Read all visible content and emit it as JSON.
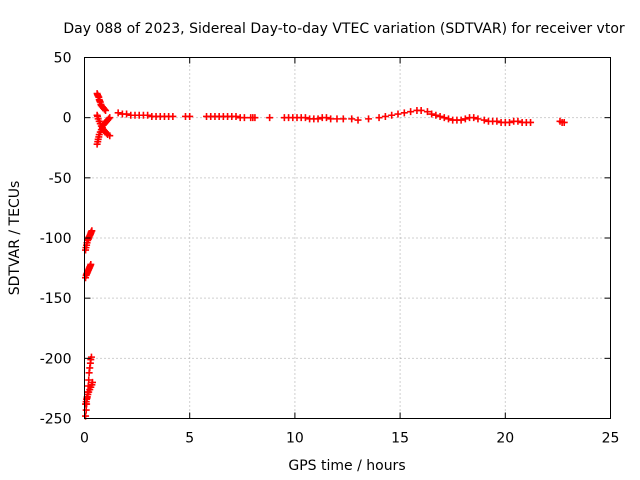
{
  "chart_data": {
    "type": "scatter",
    "title": "Day 088 of 2023, Sidereal Day-to-day VTEC variation (SDTVAR) for receiver vtor",
    "xlabel": "GPS time / hours",
    "ylabel": "SDTVAR / TECUs",
    "xlim": [
      0,
      25
    ],
    "ylim": [
      -250,
      50
    ],
    "xticks": [
      0,
      5,
      10,
      15,
      20,
      25
    ],
    "yticks": [
      -250,
      -200,
      -150,
      -100,
      -50,
      0,
      50
    ],
    "grid": true,
    "marker": "plus",
    "color": "#ff0000",
    "series": [
      {
        "name": "SDTVAR",
        "x": [
          0.05,
          0.08,
          0.1,
          0.12,
          0.15,
          0.18,
          0.2,
          0.22,
          0.25,
          0.28,
          0.3,
          0.33,
          0.05,
          0.08,
          0.1,
          0.13,
          0.15,
          0.18,
          0.2,
          0.23,
          0.25,
          0.28,
          0.3,
          0.05,
          0.07,
          0.1,
          0.12,
          0.15,
          0.18,
          0.2,
          0.22,
          0.25,
          0.28,
          0.3,
          0.32,
          0.35,
          0.05,
          0.08,
          0.1,
          0.13,
          0.16,
          0.2,
          0.25,
          0.3,
          0.35,
          0.38,
          0.6,
          0.62,
          0.65,
          0.68,
          0.7,
          0.72,
          0.75,
          0.78,
          0.8,
          0.85,
          0.9,
          0.95,
          1.0,
          0.6,
          0.63,
          0.65,
          0.68,
          0.7,
          0.75,
          0.8,
          0.85,
          0.9,
          0.95,
          1.0,
          1.05,
          1.1,
          1.15,
          1.2,
          0.6,
          0.62,
          0.65,
          0.7,
          0.75,
          0.8,
          0.85,
          0.9,
          0.95,
          1.0,
          1.05,
          1.1,
          1.2,
          1.6,
          1.8,
          2.0,
          2.2,
          2.4,
          2.6,
          2.8,
          3.0,
          3.2,
          3.4,
          3.6,
          3.8,
          4.0,
          4.2,
          4.8,
          5.0,
          5.8,
          6.0,
          6.2,
          6.4,
          6.6,
          6.8,
          7.0,
          7.2,
          7.4,
          7.6,
          7.9,
          8.0,
          8.1,
          8.8,
          9.5,
          9.7,
          9.9,
          10.1,
          10.3,
          10.5,
          10.7,
          10.9,
          11.1,
          11.3,
          11.5,
          11.7,
          12.0,
          12.3,
          12.7,
          13.0,
          13.5,
          14.0,
          14.3,
          14.6,
          14.9,
          15.2,
          15.5,
          15.8,
          16.0,
          16.3,
          16.5,
          16.7,
          16.9,
          17.1,
          17.3,
          17.5,
          17.7,
          17.9,
          18.1,
          18.3,
          18.5,
          18.7,
          19.0,
          19.2,
          19.4,
          19.6,
          19.8,
          20.0,
          20.2,
          20.4,
          20.6,
          20.8,
          21.0,
          21.2,
          22.6,
          22.7,
          22.8
        ],
        "y": [
          -248,
          -243,
          -238,
          -233,
          -228,
          -223,
          -218,
          -212,
          -208,
          -204,
          -201,
          -199,
          -133,
          -131,
          -130,
          -129,
          -128,
          -127,
          -126,
          -125,
          -124,
          -123,
          -122,
          -110,
          -108,
          -106,
          -104,
          -102,
          -101,
          -100,
          -99,
          -98,
          -97,
          -96,
          -95,
          -94,
          -238,
          -236,
          -234,
          -232,
          -230,
          -228,
          -226,
          -224,
          -222,
          -220,
          20,
          19,
          18,
          17,
          15,
          14,
          13,
          11,
          10,
          9,
          8,
          7,
          6,
          -22,
          -20,
          -18,
          -16,
          -14,
          -12,
          -10,
          -8,
          -6,
          -5,
          -4,
          -3,
          -2,
          -1,
          0,
          2,
          1,
          -1,
          -3,
          -5,
          -7,
          -9,
          -10,
          -11,
          -12,
          -13,
          -14,
          -15,
          4,
          3,
          3,
          2,
          2,
          2,
          2,
          2,
          1,
          1,
          1,
          1,
          1,
          1,
          1,
          1,
          1,
          1,
          1,
          1,
          1,
          1,
          1,
          1,
          0,
          0,
          0,
          0,
          0,
          0,
          0,
          0,
          0,
          0,
          0,
          0,
          -1,
          -1,
          -1,
          0,
          0,
          -1,
          -1,
          -1,
          -1,
          -2,
          -1,
          0,
          1,
          2,
          3,
          4,
          5,
          6,
          6,
          5,
          3,
          2,
          1,
          0,
          -1,
          -2,
          -2,
          -2,
          -1,
          0,
          0,
          -1,
          -2,
          -3,
          -3,
          -3,
          -4,
          -4,
          -4,
          -3,
          -3,
          -4,
          -4,
          -4,
          -3,
          -4,
          -4
        ]
      }
    ]
  }
}
